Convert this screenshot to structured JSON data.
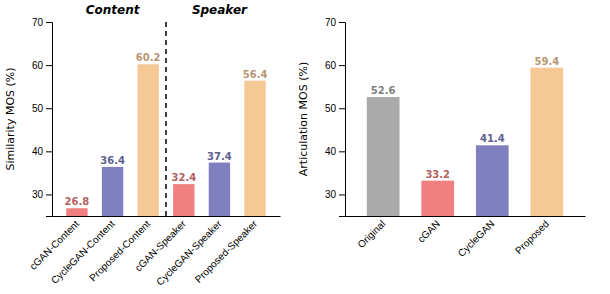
{
  "chart_data": [
    {
      "type": "bar",
      "categories": [
        "cGAN-Content",
        "CycleGAN-Content",
        "Proposed-Content",
        "cGAN-Speaker",
        "CycleGAN-Speaker",
        "Proposed-Speaker"
      ],
      "values": [
        26.8,
        36.4,
        60.2,
        32.4,
        37.4,
        56.4
      ],
      "colors": [
        "#f08080",
        "#8080c0",
        "#f5c896",
        "#f08080",
        "#8080c0",
        "#f5c896"
      ],
      "ylabel": "Similarity MOS (%)",
      "ylim": [
        25,
        70
      ],
      "yticks": [
        30,
        40,
        50,
        60,
        70
      ],
      "annotations": [
        "Content",
        "Speaker"
      ],
      "data_labels": true,
      "grid": false
    },
    {
      "type": "bar",
      "categories": [
        "Original",
        "cGAN",
        "CycleGAN",
        "Proposed"
      ],
      "values": [
        52.6,
        33.2,
        41.4,
        59.4
      ],
      "colors": [
        "#aaaaaa",
        "#f08080",
        "#8080c0",
        "#f5c896"
      ],
      "ylabel": "Articulation MOS (%)",
      "ylim": [
        25,
        70
      ],
      "yticks": [
        30,
        40,
        50,
        60,
        70
      ],
      "data_labels": true,
      "grid": false
    }
  ]
}
